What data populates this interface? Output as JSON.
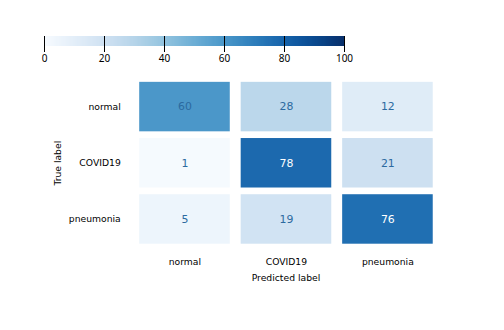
{
  "chart_data": {
    "type": "heatmap",
    "categories": [
      "normal",
      "COVID19",
      "pneumonia"
    ],
    "values": [
      [
        60,
        28,
        12
      ],
      [
        1,
        78,
        21
      ],
      [
        5,
        19,
        76
      ]
    ],
    "xlabel": "Predicted label",
    "ylabel": "True label",
    "color": "Blues",
    "colorbar_lim": [
      0,
      100
    ],
    "colorbar_ticks": [
      0,
      20,
      40,
      60,
      80,
      100
    ],
    "data_labels": true
  }
}
